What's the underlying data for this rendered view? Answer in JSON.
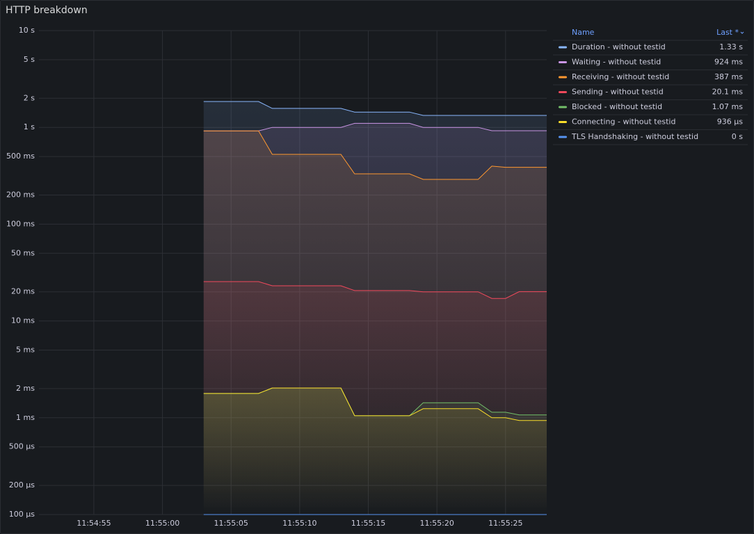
{
  "chart_data": {
    "type": "line",
    "title": "HTTP breakdown",
    "log_scale": true,
    "grid": true,
    "legend": {
      "position": "right",
      "columns": [
        "Name",
        "Last *"
      ]
    },
    "x": [
      "11:55:03",
      "11:55:04",
      "11:55:05",
      "11:55:06",
      "11:55:07",
      "11:55:08",
      "11:55:09",
      "11:55:10",
      "11:55:11",
      "11:55:12",
      "11:55:13",
      "11:55:14",
      "11:55:15",
      "11:55:16",
      "11:55:17",
      "11:55:18",
      "11:55:19",
      "11:55:20",
      "11:55:21",
      "11:55:22",
      "11:55:23",
      "11:55:24",
      "11:55:25",
      "11:55:26",
      "11:55:27",
      "11:55:28"
    ],
    "xlim": [
      "11:54:51",
      "11:55:28"
    ],
    "xticks": [
      "11:54:55",
      "11:55:00",
      "11:55:05",
      "11:55:10",
      "11:55:15",
      "11:55:20",
      "11:55:25"
    ],
    "ylim": [
      0.0001,
      10
    ],
    "yticks": [
      {
        "value": 10,
        "label": "10 s"
      },
      {
        "value": 5,
        "label": "5 s"
      },
      {
        "value": 2,
        "label": "2 s"
      },
      {
        "value": 1,
        "label": "1 s"
      },
      {
        "value": 0.5,
        "label": "500 ms"
      },
      {
        "value": 0.2,
        "label": "200 ms"
      },
      {
        "value": 0.1,
        "label": "100 ms"
      },
      {
        "value": 0.05,
        "label": "50 ms"
      },
      {
        "value": 0.02,
        "label": "20 ms"
      },
      {
        "value": 0.01,
        "label": "10 ms"
      },
      {
        "value": 0.005,
        "label": "5 ms"
      },
      {
        "value": 0.002,
        "label": "2 ms"
      },
      {
        "value": 0.001,
        "label": "1 ms"
      },
      {
        "value": 0.0005,
        "label": "500 µs"
      },
      {
        "value": 0.0002,
        "label": "200 µs"
      },
      {
        "value": 0.0001,
        "label": "100 µs"
      }
    ],
    "series": [
      {
        "name": "Duration - without testid",
        "color": "#8ab8ff",
        "last": {
          "value": 1.33,
          "label": "1.33 s"
        },
        "values": [
          1.85,
          1.85,
          1.85,
          1.85,
          1.85,
          1.57,
          1.57,
          1.57,
          1.57,
          1.57,
          1.57,
          1.44,
          1.44,
          1.44,
          1.44,
          1.44,
          1.33,
          1.33,
          1.33,
          1.33,
          1.33,
          1.33,
          1.33,
          1.33,
          1.33,
          1.33
        ]
      },
      {
        "name": "Waiting - without testid",
        "color": "#ca95e5",
        "last": {
          "value": 0.924,
          "label": "924 ms"
        },
        "values": [
          0.92,
          0.92,
          0.92,
          0.92,
          0.92,
          1.0,
          1.0,
          1.0,
          1.0,
          1.0,
          1.0,
          1.1,
          1.1,
          1.1,
          1.1,
          1.1,
          1.0,
          1.0,
          1.0,
          1.0,
          1.0,
          0.924,
          0.924,
          0.924,
          0.924,
          0.924
        ]
      },
      {
        "name": "Receiving - without testid",
        "color": "#ff9830",
        "last": {
          "value": 0.387,
          "label": "387 ms"
        },
        "values": [
          0.92,
          0.92,
          0.92,
          0.92,
          0.92,
          0.526,
          0.526,
          0.526,
          0.526,
          0.526,
          0.526,
          0.331,
          0.331,
          0.331,
          0.331,
          0.331,
          0.29,
          0.29,
          0.29,
          0.29,
          0.29,
          0.398,
          0.387,
          0.387,
          0.387,
          0.387
        ]
      },
      {
        "name": "Sending - without testid",
        "color": "#f2495c",
        "last": {
          "value": 0.0201,
          "label": "20.1 ms"
        },
        "values": [
          0.0255,
          0.0255,
          0.0255,
          0.0255,
          0.0255,
          0.0231,
          0.0231,
          0.0231,
          0.0231,
          0.0231,
          0.0231,
          0.0206,
          0.0206,
          0.0206,
          0.0206,
          0.0206,
          0.02,
          0.02,
          0.02,
          0.02,
          0.02,
          0.0171,
          0.0171,
          0.0201,
          0.0201,
          0.0201
        ]
      },
      {
        "name": "Blocked - without testid",
        "color": "#73bf69",
        "last": {
          "value": 0.00107,
          "label": "1.07 ms"
        },
        "values": [
          0.00178,
          0.00178,
          0.00178,
          0.00178,
          0.00178,
          0.00203,
          0.00203,
          0.00203,
          0.00203,
          0.00203,
          0.00203,
          0.00105,
          0.00105,
          0.00105,
          0.00105,
          0.00105,
          0.00143,
          0.00143,
          0.00143,
          0.00143,
          0.00143,
          0.00114,
          0.00114,
          0.00107,
          0.00107,
          0.00107
        ]
      },
      {
        "name": "Connecting - without testid",
        "color": "#fade2a",
        "last": {
          "value": 0.000936,
          "label": "936 µs"
        },
        "values": [
          0.00178,
          0.00178,
          0.00178,
          0.00178,
          0.00178,
          0.00203,
          0.00203,
          0.00203,
          0.00203,
          0.00203,
          0.00203,
          0.00105,
          0.00105,
          0.00105,
          0.00105,
          0.00105,
          0.00124,
          0.00124,
          0.00124,
          0.00124,
          0.00124,
          0.001,
          0.001,
          0.000936,
          0.000936,
          0.000936
        ]
      },
      {
        "name": "TLS Handshaking - without testid",
        "color": "#5794f2",
        "last": {
          "value": 0,
          "label": "0 s"
        },
        "values": [
          0,
          0,
          0,
          0,
          0,
          0,
          0,
          0,
          0,
          0,
          0,
          0,
          0,
          0,
          0,
          0,
          0,
          0,
          0,
          0,
          0,
          0,
          0,
          0,
          0,
          0
        ]
      }
    ]
  }
}
